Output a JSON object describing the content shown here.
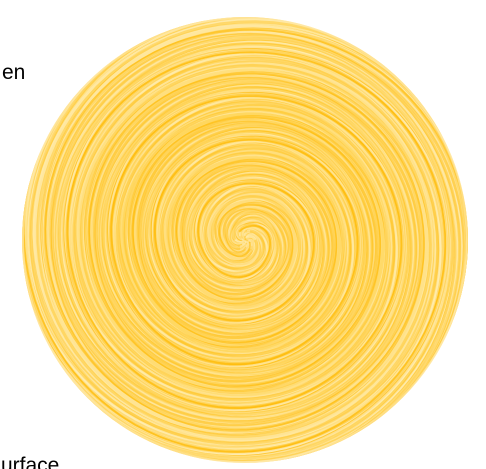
{
  "text_fragments": {
    "top": "en",
    "bottom": "urface"
  },
  "spiral": {
    "icon": "golden-swirl-disc",
    "colors": {
      "base": "#FFD966",
      "light": "#FFEFB8",
      "dark": "#FFB900",
      "mid": "#FFC833"
    }
  }
}
